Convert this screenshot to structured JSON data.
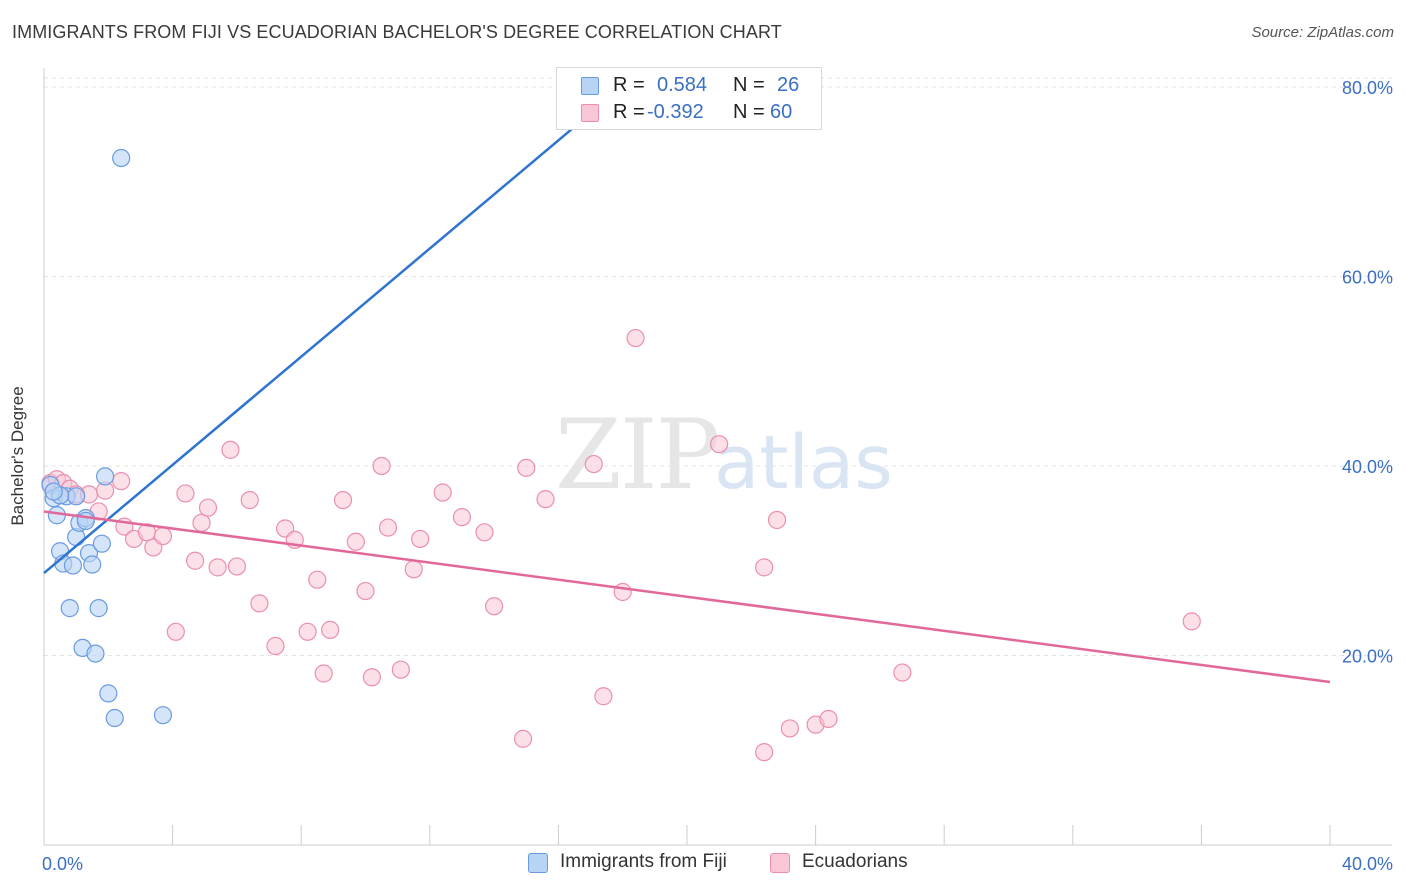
{
  "header": {
    "title": "IMMIGRANTS FROM FIJI VS ECUADORIAN BACHELOR'S DEGREE CORRELATION CHART",
    "source": "Source: ZipAtlas.com"
  },
  "watermark": {
    "part1": "ZIP",
    "part2": "atlas"
  },
  "colors": {
    "fiji_fill": "#b8d4f5",
    "fiji_stroke": "#6a9be0",
    "fiji_line": "#2e74d0",
    "ecu_fill": "#f9c6d6",
    "ecu_stroke": "#ea8fae",
    "ecu_line": "#e2679a",
    "axis_text": "#3a6fc4",
    "grid": "#e3e3e3"
  },
  "stats_legend": {
    "rows": [
      {
        "r_label": "R =",
        "r_value": "0.584",
        "n_label": "N =",
        "n_value": "26"
      },
      {
        "r_label": "R =",
        "r_value": "-0.392",
        "n_label": "N =",
        "n_value": "60"
      }
    ]
  },
  "legend": {
    "fiji": "Immigrants from Fiji",
    "ecuadorians": "Ecuadorians"
  },
  "chart_data": {
    "type": "scatter",
    "title": "IMMIGRANTS FROM FIJI VS ECUADORIAN BACHELOR'S DEGREE CORRELATION CHART",
    "xlabel": "",
    "ylabel": "Bachelor's Degree",
    "xlim": [
      0,
      40
    ],
    "ylim": [
      0,
      82
    ],
    "x_tick_labels": [
      "0.0%",
      "40.0%"
    ],
    "y_ticks": [
      20,
      40,
      60,
      80
    ],
    "y_tick_labels": [
      "20.0%",
      "40.0%",
      "60.0%",
      "80.0%"
    ],
    "grid": true,
    "legend_position": "bottom",
    "series": [
      {
        "name": "Immigrants from Fiji",
        "r": 0.584,
        "n": 26,
        "trend": {
          "x": [
            0,
            18.5
          ],
          "y": [
            28.7,
            81.5
          ]
        },
        "points": [
          [
            0.2,
            38.0
          ],
          [
            0.3,
            36.6
          ],
          [
            0.4,
            34.8
          ],
          [
            0.5,
            31.0
          ],
          [
            0.6,
            29.7
          ],
          [
            0.7,
            36.8
          ],
          [
            0.8,
            25.0
          ],
          [
            0.9,
            29.5
          ],
          [
            1.0,
            32.5
          ],
          [
            1.0,
            36.8
          ],
          [
            1.1,
            34.0
          ],
          [
            1.2,
            20.8
          ],
          [
            1.3,
            34.5
          ],
          [
            1.4,
            30.8
          ],
          [
            1.5,
            29.6
          ],
          [
            1.6,
            20.2
          ],
          [
            1.7,
            25.0
          ],
          [
            1.8,
            31.8
          ],
          [
            1.9,
            38.9
          ],
          [
            2.0,
            16.0
          ],
          [
            2.2,
            13.4
          ],
          [
            2.4,
            72.5
          ],
          [
            3.7,
            13.7
          ],
          [
            0.5,
            36.9
          ],
          [
            0.3,
            37.3
          ],
          [
            1.3,
            34.2
          ]
        ]
      },
      {
        "name": "Ecuadorians",
        "r": -0.392,
        "n": 60,
        "trend": {
          "x": [
            0,
            40
          ],
          "y": [
            35.2,
            17.2
          ]
        },
        "points": [
          [
            0.2,
            38.2
          ],
          [
            0.4,
            38.6
          ],
          [
            0.6,
            38.2
          ],
          [
            0.8,
            37.6
          ],
          [
            1.0,
            37.0
          ],
          [
            1.4,
            37.0
          ],
          [
            1.7,
            35.2
          ],
          [
            1.9,
            37.4
          ],
          [
            2.4,
            38.4
          ],
          [
            2.5,
            33.6
          ],
          [
            2.8,
            32.3
          ],
          [
            3.2,
            33.0
          ],
          [
            3.4,
            31.4
          ],
          [
            3.7,
            32.6
          ],
          [
            4.1,
            22.5
          ],
          [
            4.4,
            37.1
          ],
          [
            4.7,
            30.0
          ],
          [
            4.9,
            34.0
          ],
          [
            5.1,
            35.6
          ],
          [
            5.4,
            29.3
          ],
          [
            5.8,
            41.7
          ],
          [
            6.0,
            29.4
          ],
          [
            6.4,
            36.4
          ],
          [
            6.7,
            25.5
          ],
          [
            7.2,
            21.0
          ],
          [
            7.5,
            33.4
          ],
          [
            7.8,
            32.2
          ],
          [
            8.2,
            22.5
          ],
          [
            8.5,
            28.0
          ],
          [
            8.9,
            22.7
          ],
          [
            8.7,
            18.1
          ],
          [
            9.3,
            36.4
          ],
          [
            9.7,
            32.0
          ],
          [
            10.0,
            26.8
          ],
          [
            10.2,
            17.7
          ],
          [
            10.5,
            40.0
          ],
          [
            10.7,
            33.5
          ],
          [
            11.1,
            18.5
          ],
          [
            11.5,
            29.1
          ],
          [
            11.7,
            32.3
          ],
          [
            12.4,
            37.2
          ],
          [
            13.0,
            34.6
          ],
          [
            13.7,
            33.0
          ],
          [
            14.0,
            25.2
          ],
          [
            14.9,
            11.2
          ],
          [
            15.0,
            39.8
          ],
          [
            15.6,
            36.5
          ],
          [
            17.1,
            40.2
          ],
          [
            17.4,
            15.7
          ],
          [
            18.0,
            26.7
          ],
          [
            18.4,
            53.5
          ],
          [
            21.0,
            42.3
          ],
          [
            22.4,
            9.8
          ],
          [
            22.4,
            29.3
          ],
          [
            22.8,
            34.3
          ],
          [
            23.2,
            12.3
          ],
          [
            24.0,
            12.7
          ],
          [
            24.4,
            13.3
          ],
          [
            26.7,
            18.2
          ],
          [
            35.7,
            23.6
          ]
        ]
      }
    ]
  }
}
